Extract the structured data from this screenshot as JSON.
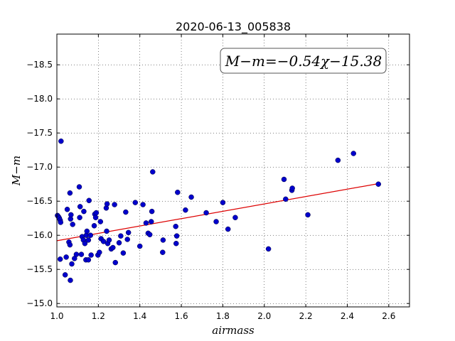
{
  "chart_data": {
    "type": "scatter",
    "title": "2020-06-13_005838",
    "xlabel": "airmass",
    "ylabel": "M−m",
    "xlim": [
      1.0,
      2.7
    ],
    "ylim": [
      -18.95,
      -14.95
    ],
    "y_inverted": true,
    "grid": true,
    "x_ticks": [
      1.0,
      1.2,
      1.4,
      1.6,
      1.8,
      2.0,
      2.2,
      2.4,
      2.6
    ],
    "x_tick_labels": [
      "1.0",
      "1.2",
      "1.4",
      "1.6",
      "1.8",
      "2.0",
      "2.2",
      "2.4",
      "2.6"
    ],
    "y_ticks": [
      -15.0,
      -15.5,
      -16.0,
      -16.5,
      -17.0,
      -17.5,
      -18.0,
      -18.5
    ],
    "y_tick_labels": [
      "−15.0",
      "−15.5",
      "−16.0",
      "−16.5",
      "−17.0",
      "−17.5",
      "−18.0",
      "−18.5"
    ],
    "annotation": "M−m=−0.54χ−15.38",
    "fit": {
      "slope": -0.54,
      "intercept": -15.38,
      "x_range": [
        1.0,
        2.55
      ],
      "color": "#dd0000"
    },
    "point_color": "#0000cc",
    "points": [
      [
        1.003,
        -16.29
      ],
      [
        1.008,
        -16.27
      ],
      [
        1.012,
        -16.25
      ],
      [
        1.016,
        -16.22
      ],
      [
        1.018,
        -16.19
      ],
      [
        1.016,
        -15.65
      ],
      [
        1.02,
        -17.38
      ],
      [
        1.04,
        -15.42
      ],
      [
        1.045,
        -15.68
      ],
      [
        1.05,
        -16.38
      ],
      [
        1.058,
        -15.9
      ],
      [
        1.063,
        -15.86
      ],
      [
        1.065,
        -15.34
      ],
      [
        1.063,
        -16.62
      ],
      [
        1.066,
        -16.24
      ],
      [
        1.068,
        -16.3
      ],
      [
        1.072,
        -15.58
      ],
      [
        1.076,
        -16.16
      ],
      [
        1.085,
        -15.66
      ],
      [
        1.094,
        -15.72
      ],
      [
        1.108,
        -16.71
      ],
      [
        1.11,
        -16.26
      ],
      [
        1.112,
        -16.42
      ],
      [
        1.118,
        -15.72
      ],
      [
        1.122,
        -15.98
      ],
      [
        1.128,
        -15.93
      ],
      [
        1.13,
        -16.35
      ],
      [
        1.135,
        -15.88
      ],
      [
        1.14,
        -15.64
      ],
      [
        1.142,
        -16.0
      ],
      [
        1.145,
        -16.06
      ],
      [
        1.152,
        -15.64
      ],
      [
        1.152,
        -15.93
      ],
      [
        1.155,
        -16.51
      ],
      [
        1.162,
        -16.0
      ],
      [
        1.165,
        -15.71
      ],
      [
        1.18,
        -16.14
      ],
      [
        1.183,
        -16.31
      ],
      [
        1.187,
        -16.26
      ],
      [
        1.19,
        -16.33
      ],
      [
        1.198,
        -15.71
      ],
      [
        1.205,
        -15.75
      ],
      [
        1.21,
        -16.2
      ],
      [
        1.213,
        -15.95
      ],
      [
        1.225,
        -15.91
      ],
      [
        1.238,
        -16.4
      ],
      [
        1.24,
        -16.06
      ],
      [
        1.242,
        -16.46
      ],
      [
        1.245,
        -15.88
      ],
      [
        1.252,
        -15.93
      ],
      [
        1.262,
        -15.8
      ],
      [
        1.27,
        -15.82
      ],
      [
        1.278,
        -16.45
      ],
      [
        1.282,
        -15.6
      ],
      [
        1.3,
        -15.89
      ],
      [
        1.308,
        -15.99
      ],
      [
        1.32,
        -15.74
      ],
      [
        1.332,
        -16.34
      ],
      [
        1.34,
        -15.94
      ],
      [
        1.345,
        -16.04
      ],
      [
        1.378,
        -16.48
      ],
      [
        1.4,
        -15.84
      ],
      [
        1.415,
        -16.45
      ],
      [
        1.43,
        -16.18
      ],
      [
        1.44,
        -16.03
      ],
      [
        1.448,
        -16.01
      ],
      [
        1.455,
        -16.2
      ],
      [
        1.458,
        -16.35
      ],
      [
        1.462,
        -16.93
      ],
      [
        1.51,
        -15.75
      ],
      [
        1.512,
        -15.93
      ],
      [
        1.573,
        -16.13
      ],
      [
        1.575,
        -15.88
      ],
      [
        1.578,
        -15.99
      ],
      [
        1.582,
        -16.63
      ],
      [
        1.62,
        -16.37
      ],
      [
        1.648,
        -16.56
      ],
      [
        1.72,
        -16.33
      ],
      [
        1.768,
        -16.2
      ],
      [
        1.8,
        -16.48
      ],
      [
        1.825,
        -16.09
      ],
      [
        1.86,
        -16.26
      ],
      [
        2.02,
        -15.8
      ],
      [
        2.095,
        -16.82
      ],
      [
        2.103,
        -16.53
      ],
      [
        2.133,
        -16.66
      ],
      [
        2.135,
        -16.69
      ],
      [
        2.21,
        -16.3
      ],
      [
        2.355,
        -17.1
      ],
      [
        2.43,
        -17.2
      ],
      [
        2.55,
        -16.75
      ]
    ]
  }
}
